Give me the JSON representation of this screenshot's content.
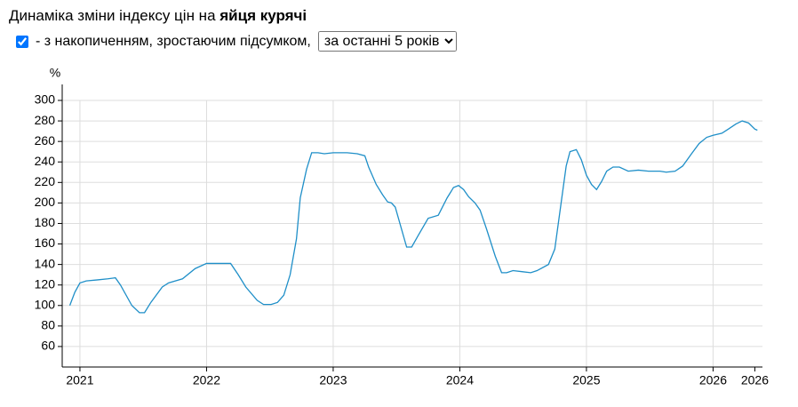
{
  "header": {
    "title": "Динаміка зміни індексу цін на ",
    "title_emphasis": "яйця курячі"
  },
  "controls": {
    "cumulative_checked": true,
    "cumulative_label": "- з накопиченням, зростаючим підсумком,",
    "period_selected": "за останні 5 років"
  },
  "chart_data": {
    "type": "line",
    "y_label": "%",
    "x": [
      2020.92,
      2020.96,
      2021.0,
      2021.05,
      2021.14,
      2021.22,
      2021.28,
      2021.32,
      2021.41,
      2021.47,
      2021.51,
      2021.56,
      2021.65,
      2021.7,
      2021.81,
      2021.91,
      2022.0,
      2022.09,
      2022.16,
      2022.19,
      2022.25,
      2022.31,
      2022.4,
      2022.45,
      2022.51,
      2022.56,
      2022.61,
      2022.66,
      2022.71,
      2022.74,
      2022.79,
      2022.83,
      2022.88,
      2022.93,
      2023.0,
      2023.11,
      2023.19,
      2023.25,
      2023.28,
      2023.34,
      2023.39,
      2023.43,
      2023.46,
      2023.49,
      2023.58,
      2023.62,
      2023.67,
      2023.75,
      2023.83,
      2023.9,
      2023.95,
      2023.99,
      2024.03,
      2024.07,
      2024.12,
      2024.16,
      2024.21,
      2024.28,
      2024.33,
      2024.37,
      2024.42,
      2024.49,
      2024.56,
      2024.61,
      2024.7,
      2024.75,
      2024.8,
      2024.84,
      2024.87,
      2024.92,
      2024.96,
      2025.0,
      2025.04,
      2025.08,
      2025.12,
      2025.16,
      2025.21,
      2025.26,
      2025.33,
      2025.41,
      2025.49,
      2025.58,
      2025.63,
      2025.7,
      2025.76,
      2025.83,
      2025.89,
      2025.95,
      2026.0,
      2026.07,
      2026.12,
      2026.18,
      2026.23,
      2026.28,
      2026.33,
      2026.35
    ],
    "series": [
      {
        "color": "#1f8fc8",
        "values": [
          100,
          113,
          122,
          124,
          125,
          126,
          127,
          120,
          100,
          93,
          93,
          103,
          118,
          122,
          126,
          136,
          141,
          141,
          141,
          141,
          130,
          118,
          105,
          101,
          101,
          103,
          110,
          130,
          165,
          205,
          233,
          249,
          249,
          248,
          249,
          249,
          248,
          246,
          235,
          218,
          208,
          201,
          200,
          196,
          157,
          157,
          168,
          185,
          188,
          205,
          215,
          217,
          213,
          206,
          200,
          193,
          175,
          148,
          132,
          132,
          134,
          133,
          132,
          134,
          140,
          155,
          200,
          236,
          250,
          252,
          242,
          227,
          218,
          213,
          221,
          231,
          235,
          235,
          231,
          232,
          231,
          231,
          230,
          231,
          236,
          248,
          258,
          264,
          266,
          268,
          272,
          277,
          280,
          278,
          272,
          271
        ]
      }
    ],
    "xlim": [
      2020.86,
      2026.39
    ],
    "xticks": [
      2021,
      2022,
      2023,
      2024,
      2025,
      2026,
      {
        "value": 2026.33,
        "label": "2026"
      }
    ],
    "ylim": [
      40,
      300
    ],
    "yticks": [
      60,
      80,
      100,
      120,
      140,
      160,
      180,
      200,
      220,
      240,
      260,
      280,
      300
    ],
    "grid": true
  }
}
